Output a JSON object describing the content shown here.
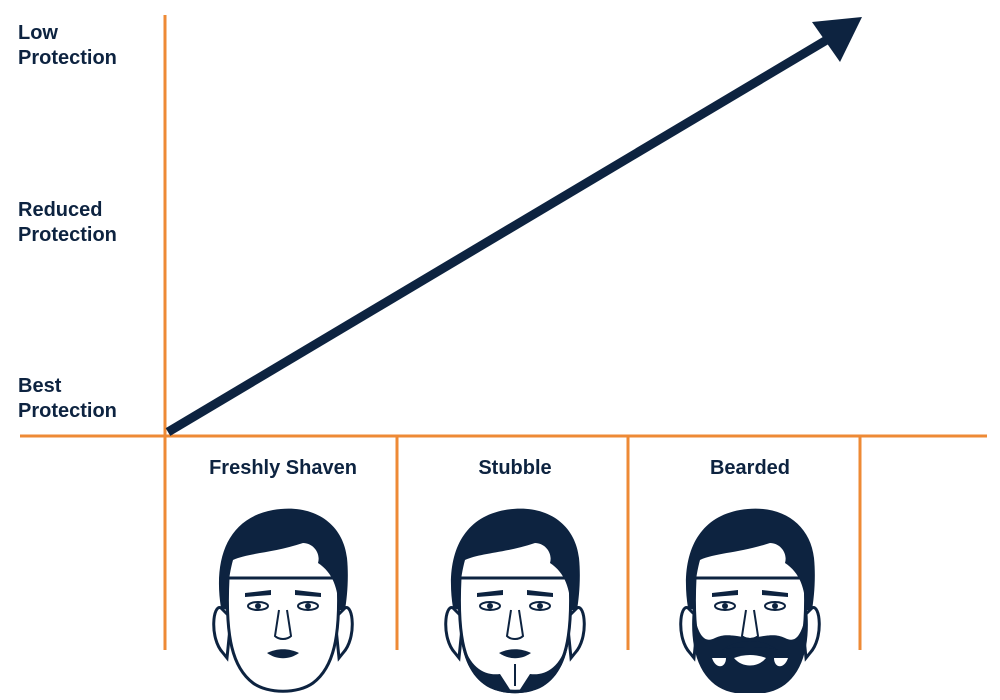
{
  "y_axis": {
    "levels": [
      [
        "Low",
        "Protection"
      ],
      [
        "Reduced",
        "Protection"
      ],
      [
        "Best",
        "Protection"
      ]
    ]
  },
  "x_axis": {
    "categories": [
      "Freshly Shaven",
      "Stubble",
      "Bearded"
    ]
  }
}
